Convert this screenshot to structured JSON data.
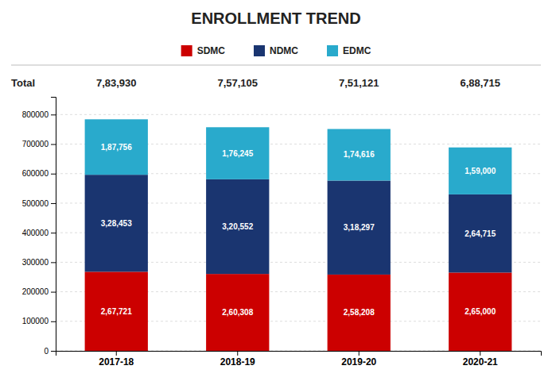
{
  "chart_data": {
    "type": "bar",
    "title": "ENROLLMENT TREND",
    "categories": [
      "2017-18",
      "2018-19",
      "2019-20",
      "2020-21"
    ],
    "stacked": true,
    "data_labels": true,
    "grid": true,
    "legend": "top",
    "series": [
      {
        "name": "SDMC",
        "color": "#cc0000",
        "values": [
          267721,
          260308,
          258208,
          265000
        ],
        "value_labels": [
          "2,67,721",
          "2,60,308",
          "2,58,208",
          "2,65,000"
        ]
      },
      {
        "name": "NDMC",
        "color": "#1a3570",
        "values": [
          328453,
          320552,
          318297,
          264715
        ],
        "value_labels": [
          "3,28,453",
          "3,20,552",
          "3,18,297",
          "2,64,715"
        ]
      },
      {
        "name": "EDMC",
        "color": "#29aacc",
        "values": [
          187756,
          176245,
          174616,
          159000
        ],
        "value_labels": [
          "1,87,756",
          "1,76,245",
          "1,74,616",
          "1,59,000"
        ]
      }
    ],
    "totals": {
      "label": "Total",
      "values": [
        783930,
        757105,
        751121,
        688715
      ],
      "value_labels": [
        "7,83,930",
        "7,57,105",
        "7,51,121",
        "6,88,715"
      ]
    },
    "ylim": [
      0,
      860000
    ],
    "yticks": [
      0,
      100000,
      200000,
      300000,
      400000,
      500000,
      600000,
      700000,
      800000
    ]
  }
}
